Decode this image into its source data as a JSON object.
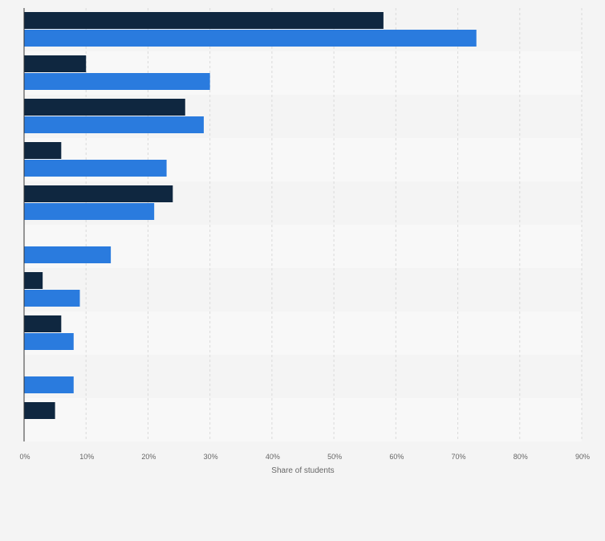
{
  "chart_data": {
    "type": "bar",
    "orientation": "horizontal",
    "title": "",
    "xlabel": "Share of students",
    "ylabel": "",
    "xlim": [
      0,
      90
    ],
    "x_ticks": [
      "0%",
      "10%",
      "20%",
      "30%",
      "40%",
      "50%",
      "60%",
      "70%",
      "80%",
      "90%"
    ],
    "categories": [
      "",
      "",
      "",
      "",
      "",
      "",
      "",
      "",
      "",
      ""
    ],
    "series": [
      {
        "name": "",
        "color": "#0f2740",
        "values": [
          58,
          10,
          26,
          6,
          24,
          null,
          3,
          6,
          null,
          5
        ]
      },
      {
        "name": "",
        "color": "#2a7bde",
        "values": [
          73,
          30,
          29,
          23,
          21,
          14,
          9,
          8,
          8,
          null
        ]
      }
    ],
    "grid": true,
    "legend": "none",
    "colors": {
      "background": "#f4f4f4",
      "band_alt": "#f8f8f8",
      "gridline": "#dadada",
      "axis": "#333333",
      "tick_text": "#666666"
    }
  }
}
